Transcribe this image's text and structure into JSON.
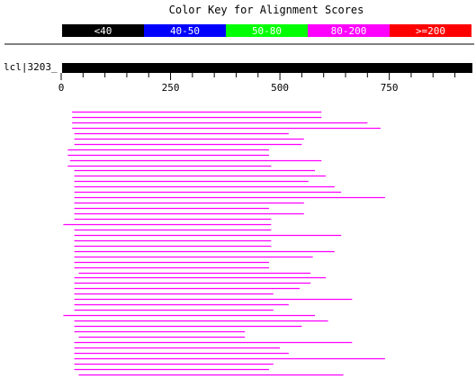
{
  "title": "Color Key for Alignment Scores",
  "color_key": [
    {
      "label": "<40",
      "color": "#000000"
    },
    {
      "label": "40-50",
      "color": "#0000ff"
    },
    {
      "label": "50-80",
      "color": "#00ff00"
    },
    {
      "label": "80-200",
      "color": "#ff00ff"
    },
    {
      "label": ">=200",
      "color": "#ff0000"
    }
  ],
  "query": {
    "label": "lcl|3203_",
    "length": 940
  },
  "chart_data": {
    "type": "alignment-hits",
    "xlim": [
      0,
      940
    ],
    "ticks": [
      0,
      250,
      500,
      750
    ],
    "hit_color": "#ff00ff",
    "hits": [
      [
        25,
        595
      ],
      [
        25,
        595
      ],
      [
        25,
        700
      ],
      [
        25,
        730
      ],
      [
        30,
        520
      ],
      [
        30,
        555
      ],
      [
        30,
        550
      ],
      [
        15,
        475
      ],
      [
        15,
        475
      ],
      [
        20,
        595
      ],
      [
        15,
        480
      ],
      [
        30,
        580
      ],
      [
        30,
        605
      ],
      [
        30,
        565
      ],
      [
        30,
        625
      ],
      [
        30,
        640
      ],
      [
        30,
        740
      ],
      [
        30,
        555
      ],
      [
        30,
        475
      ],
      [
        30,
        555
      ],
      [
        30,
        480
      ],
      [
        5,
        480
      ],
      [
        30,
        480
      ],
      [
        30,
        640
      ],
      [
        30,
        480
      ],
      [
        30,
        480
      ],
      [
        30,
        625
      ],
      [
        30,
        575
      ],
      [
        30,
        475
      ],
      [
        30,
        475
      ],
      [
        40,
        570
      ],
      [
        30,
        605
      ],
      [
        30,
        570
      ],
      [
        30,
        545
      ],
      [
        30,
        485
      ],
      [
        30,
        665
      ],
      [
        30,
        520
      ],
      [
        30,
        485
      ],
      [
        5,
        580
      ],
      [
        30,
        610
      ],
      [
        30,
        550
      ],
      [
        30,
        420
      ],
      [
        40,
        420
      ],
      [
        30,
        665
      ],
      [
        30,
        500
      ],
      [
        30,
        520
      ],
      [
        30,
        740
      ],
      [
        30,
        485
      ],
      [
        30,
        475
      ],
      [
        40,
        645
      ],
      [
        40,
        645
      ]
    ]
  }
}
